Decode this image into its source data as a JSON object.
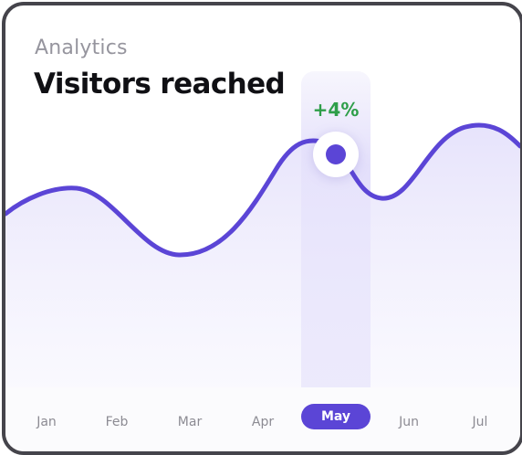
{
  "card": {
    "subtitle": "Analytics",
    "title": "Visitors reached"
  },
  "highlight": {
    "month": "May",
    "change_label": "+4%"
  },
  "months": [
    {
      "label": "Jan",
      "active": false
    },
    {
      "label": "Feb",
      "active": false
    },
    {
      "label": "Mar",
      "active": false
    },
    {
      "label": "Apr",
      "active": false
    },
    {
      "label": "May",
      "active": true
    },
    {
      "label": "Jun",
      "active": false
    },
    {
      "label": "Jul",
      "active": false
    }
  ],
  "colors": {
    "line": "#5b45d6",
    "area": "#e9e6fb",
    "change_positive": "#2e9e49",
    "active_pill": "#5b45d6",
    "frame": "#45444b"
  }
}
